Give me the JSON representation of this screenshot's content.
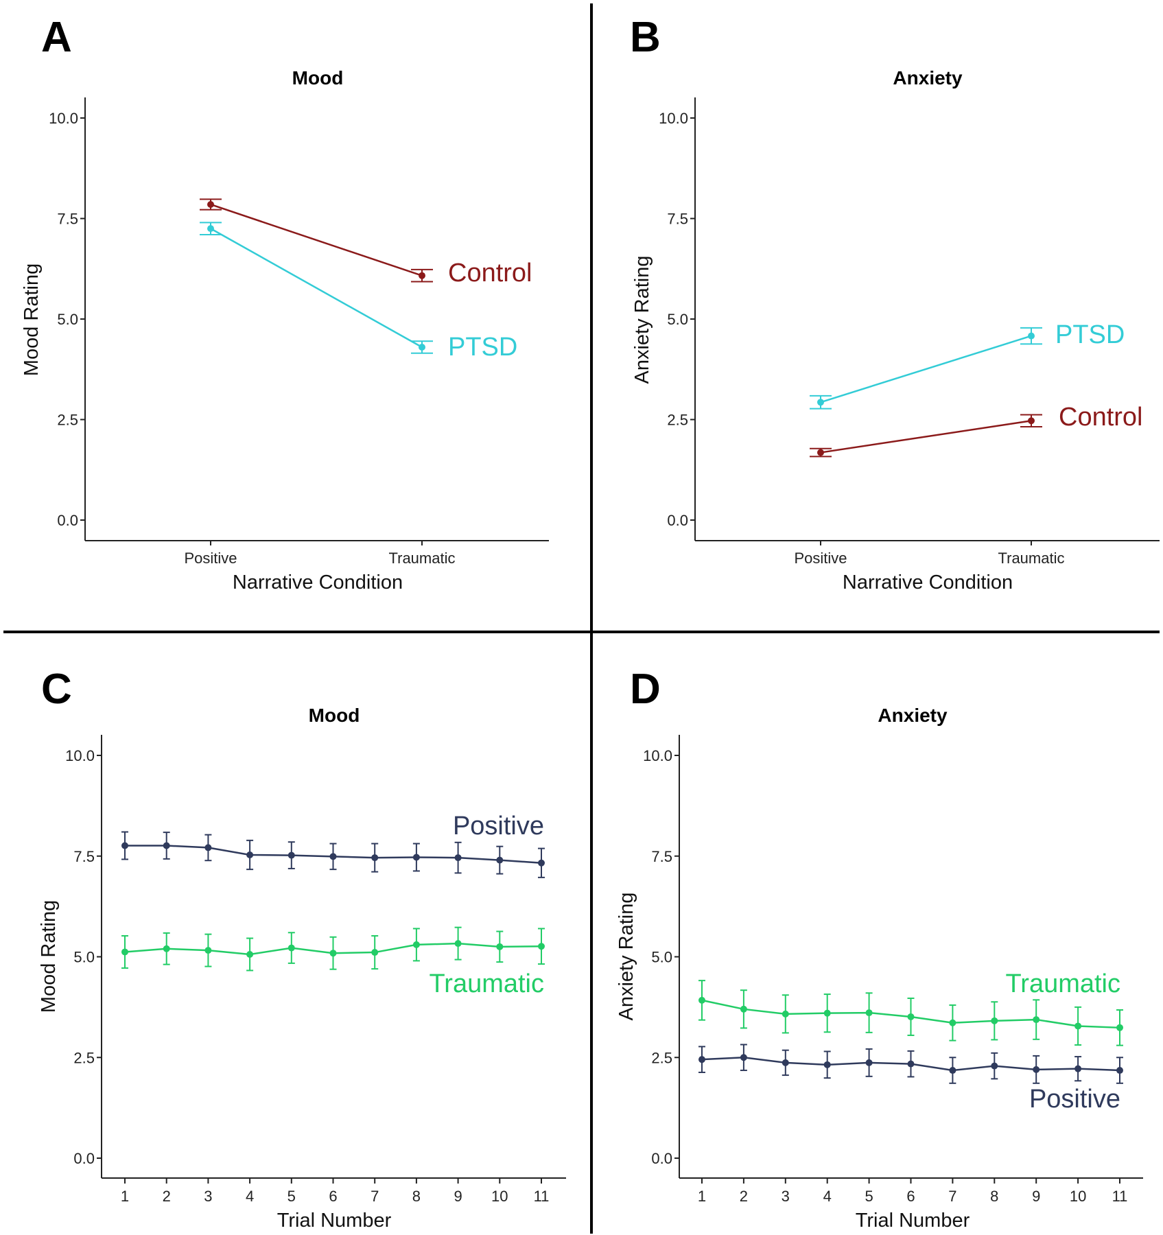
{
  "figure": {
    "colors": {
      "control": "#8B1A1A",
      "ptsd": "#33CCD6",
      "positive": "#2F3A5C",
      "traumatic": "#22CC66"
    }
  },
  "chart_data": [
    {
      "panel": "A",
      "type": "line",
      "title": "Mood",
      "xlabel": "Narrative Condition",
      "ylabel": "Mood Rating",
      "categories": [
        "Positive",
        "Traumatic"
      ],
      "ylim": [
        0,
        10
      ],
      "yticks": [
        "0.0",
        "2.5",
        "5.0",
        "7.5",
        "10.0"
      ],
      "series": [
        {
          "name": "Control",
          "color_key": "control",
          "values": [
            7.85,
            6.08
          ],
          "errors": [
            0.13,
            0.15
          ]
        },
        {
          "name": "PTSD",
          "color_key": "ptsd",
          "values": [
            7.25,
            4.3
          ],
          "errors": [
            0.15,
            0.15
          ]
        }
      ]
    },
    {
      "panel": "B",
      "type": "line",
      "title": "Anxiety",
      "xlabel": "Narrative Condition",
      "ylabel": "Anxiety Rating",
      "categories": [
        "Positive",
        "Traumatic"
      ],
      "ylim": [
        0,
        10
      ],
      "yticks": [
        "0.0",
        "2.5",
        "5.0",
        "7.5",
        "10.0"
      ],
      "series": [
        {
          "name": "PTSD",
          "color_key": "ptsd",
          "values": [
            2.93,
            4.58
          ],
          "errors": [
            0.16,
            0.2
          ]
        },
        {
          "name": "Control",
          "color_key": "control",
          "values": [
            1.68,
            2.47
          ],
          "errors": [
            0.1,
            0.15
          ]
        }
      ]
    },
    {
      "panel": "C",
      "type": "line",
      "title": "Mood",
      "xlabel": "Trial Number",
      "ylabel": "Mood Rating",
      "categories": [
        "1",
        "2",
        "3",
        "4",
        "5",
        "6",
        "7",
        "8",
        "9",
        "10",
        "11"
      ],
      "ylim": [
        0,
        10
      ],
      "yticks": [
        "0.0",
        "2.5",
        "5.0",
        "7.5",
        "10.0"
      ],
      "series": [
        {
          "name": "Positive",
          "color_key": "positive",
          "values": [
            7.76,
            7.76,
            7.71,
            7.53,
            7.52,
            7.49,
            7.46,
            7.47,
            7.46,
            7.4,
            7.33
          ],
          "errors": [
            0.34,
            0.33,
            0.32,
            0.36,
            0.33,
            0.32,
            0.35,
            0.34,
            0.38,
            0.34,
            0.36
          ]
        },
        {
          "name": "Traumatic",
          "color_key": "traumatic",
          "values": [
            5.12,
            5.2,
            5.16,
            5.06,
            5.22,
            5.09,
            5.11,
            5.3,
            5.33,
            5.25,
            5.26
          ],
          "errors": [
            0.4,
            0.39,
            0.4,
            0.4,
            0.38,
            0.4,
            0.41,
            0.4,
            0.4,
            0.38,
            0.44
          ]
        }
      ]
    },
    {
      "panel": "D",
      "type": "line",
      "title": "Anxiety",
      "xlabel": "Trial Number",
      "ylabel": "Anxiety Rating",
      "categories": [
        "1",
        "2",
        "3",
        "4",
        "5",
        "6",
        "7",
        "8",
        "9",
        "10",
        "11"
      ],
      "ylim": [
        0,
        10
      ],
      "yticks": [
        "0.0",
        "2.5",
        "5.0",
        "7.5",
        "10.0"
      ],
      "series": [
        {
          "name": "Traumatic",
          "color_key": "traumatic",
          "values": [
            3.92,
            3.7,
            3.58,
            3.6,
            3.61,
            3.51,
            3.36,
            3.41,
            3.44,
            3.28,
            3.24
          ],
          "errors": [
            0.49,
            0.47,
            0.47,
            0.47,
            0.49,
            0.46,
            0.44,
            0.47,
            0.49,
            0.47,
            0.44
          ]
        },
        {
          "name": "Positive",
          "color_key": "positive",
          "values": [
            2.45,
            2.5,
            2.37,
            2.32,
            2.37,
            2.34,
            2.18,
            2.29,
            2.2,
            2.22,
            2.18
          ],
          "errors": [
            0.32,
            0.32,
            0.31,
            0.33,
            0.34,
            0.32,
            0.32,
            0.32,
            0.34,
            0.3,
            0.32
          ]
        }
      ]
    }
  ]
}
